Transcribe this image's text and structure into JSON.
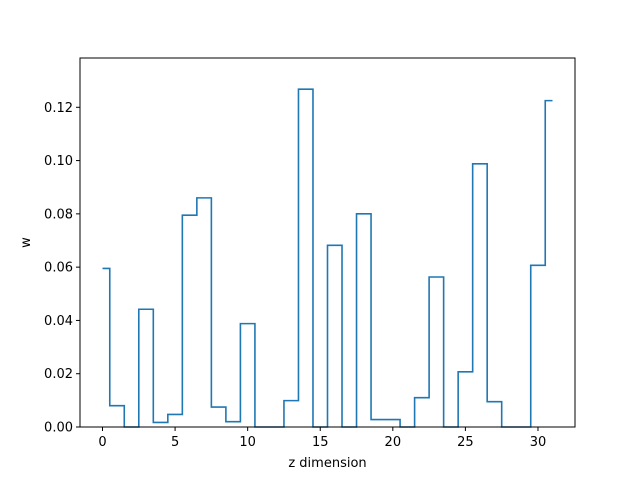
{
  "chart_data": {
    "type": "line",
    "style": "step-mid",
    "title": "",
    "xlabel": "z dimension",
    "ylabel": "w",
    "xlim": [
      -1.55,
      32.55
    ],
    "ylim": [
      0,
      0.1385
    ],
    "xticks": [
      0,
      5,
      10,
      15,
      20,
      25,
      30
    ],
    "xtick_labels": [
      "0",
      "5",
      "10",
      "15",
      "20",
      "25",
      "30"
    ],
    "yticks": [
      0,
      0.02,
      0.04,
      0.06,
      0.08,
      0.1,
      0.12
    ],
    "ytick_labels": [
      "0.00",
      "0.02",
      "0.04",
      "0.06",
      "0.08",
      "0.10",
      "0.12"
    ],
    "grid": false,
    "series": [
      {
        "color": "#1f77b4",
        "x": [
          0,
          1,
          2,
          3,
          4,
          5,
          6,
          7,
          8,
          9,
          10,
          11,
          12,
          13,
          14,
          15,
          16,
          17,
          18,
          19,
          20,
          21,
          22,
          23,
          24,
          25,
          26,
          27,
          28,
          29,
          30,
          31
        ],
        "values": [
          0.0595,
          0.008,
          0.0,
          0.0442,
          0.0017,
          0.0047,
          0.0795,
          0.086,
          0.0075,
          0.002,
          0.0388,
          0.0,
          0.0,
          0.0099,
          0.1268,
          0.0,
          0.0682,
          0.0,
          0.08,
          0.0028,
          0.0028,
          0.0,
          0.011,
          0.0563,
          0.0,
          0.0207,
          0.0988,
          0.0095,
          0.0,
          0.0,
          0.0607,
          0.1225
        ]
      }
    ]
  }
}
